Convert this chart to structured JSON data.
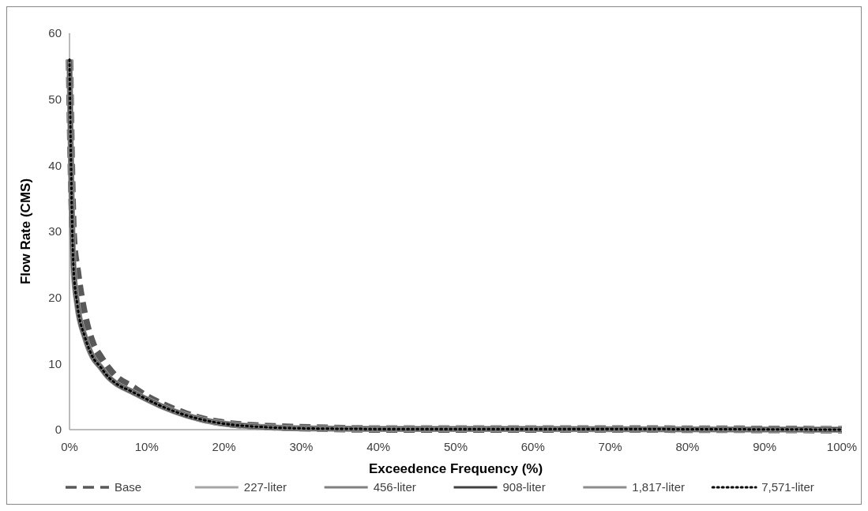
{
  "chart_data": {
    "type": "line",
    "xlabel": "Exceedence Frequency (%)",
    "ylabel": "Flow Rate (CMS)",
    "xlim": [
      0,
      100
    ],
    "xticks": [
      {
        "value": 0,
        "label": "0%"
      },
      {
        "value": 10,
        "label": "10%"
      },
      {
        "value": 20,
        "label": "20%"
      },
      {
        "value": 30,
        "label": "30%"
      },
      {
        "value": 40,
        "label": "40%"
      },
      {
        "value": 50,
        "label": "50%"
      },
      {
        "value": 60,
        "label": "60%"
      },
      {
        "value": 70,
        "label": "70%"
      },
      {
        "value": 80,
        "label": "80%"
      },
      {
        "value": 90,
        "label": "90%"
      },
      {
        "value": 100,
        "label": "100%"
      }
    ],
    "ylim": [
      0,
      60
    ],
    "yticks": [
      0,
      10,
      20,
      30,
      40,
      50,
      60
    ],
    "grid": false,
    "legend": "bottom",
    "x": [
      0,
      0.2,
      0.5,
      1,
      2,
      3,
      4,
      5,
      6,
      8,
      10,
      12,
      15,
      18,
      20,
      25,
      30,
      40,
      60,
      100
    ],
    "series": [
      {
        "name": "Base",
        "color": "#595959",
        "line_style": "dashed",
        "values": [
          56,
          42,
          29,
          24,
          17,
          13,
          11,
          9.3,
          8,
          6.5,
          5,
          3.8,
          2.4,
          1.4,
          1,
          0.5,
          0.3,
          0.1,
          0.1,
          0
        ]
      },
      {
        "name": "227-liter",
        "color": "#a6a6a6",
        "line_style": "solid",
        "values": [
          56,
          40,
          25,
          19,
          14,
          11,
          9.5,
          8,
          7,
          5.8,
          4.6,
          3.5,
          2.2,
          1.3,
          0.9,
          0.4,
          0.2,
          0.1,
          0.1,
          0
        ]
      },
      {
        "name": "456-liter",
        "color": "#7f7f7f",
        "line_style": "solid",
        "values": [
          56,
          40,
          25,
          19,
          14,
          11,
          9.5,
          8,
          7,
          5.8,
          4.6,
          3.5,
          2.2,
          1.3,
          0.9,
          0.4,
          0.2,
          0.1,
          0.1,
          0
        ]
      },
      {
        "name": "908-liter",
        "color": "#404040",
        "line_style": "solid",
        "values": [
          56,
          40,
          25,
          19,
          14,
          11,
          9.5,
          8,
          7,
          5.8,
          4.6,
          3.5,
          2.2,
          1.3,
          0.9,
          0.4,
          0.2,
          0.1,
          0.1,
          0
        ]
      },
      {
        "name": "1,817-liter",
        "color": "#8c8c8c",
        "line_style": "solid",
        "values": [
          56,
          40,
          25,
          19,
          14,
          11,
          9.5,
          8,
          7,
          5.8,
          4.6,
          3.5,
          2.2,
          1.3,
          0.9,
          0.4,
          0.2,
          0.1,
          0.1,
          0
        ]
      },
      {
        "name": "7,571-liter",
        "color": "#000000",
        "line_style": "dotted",
        "values": [
          56,
          40,
          25,
          19,
          14,
          11,
          9.5,
          8,
          7,
          5.8,
          4.6,
          3.5,
          2.2,
          1.3,
          0.9,
          0.4,
          0.2,
          0.1,
          0.1,
          0
        ]
      }
    ]
  }
}
